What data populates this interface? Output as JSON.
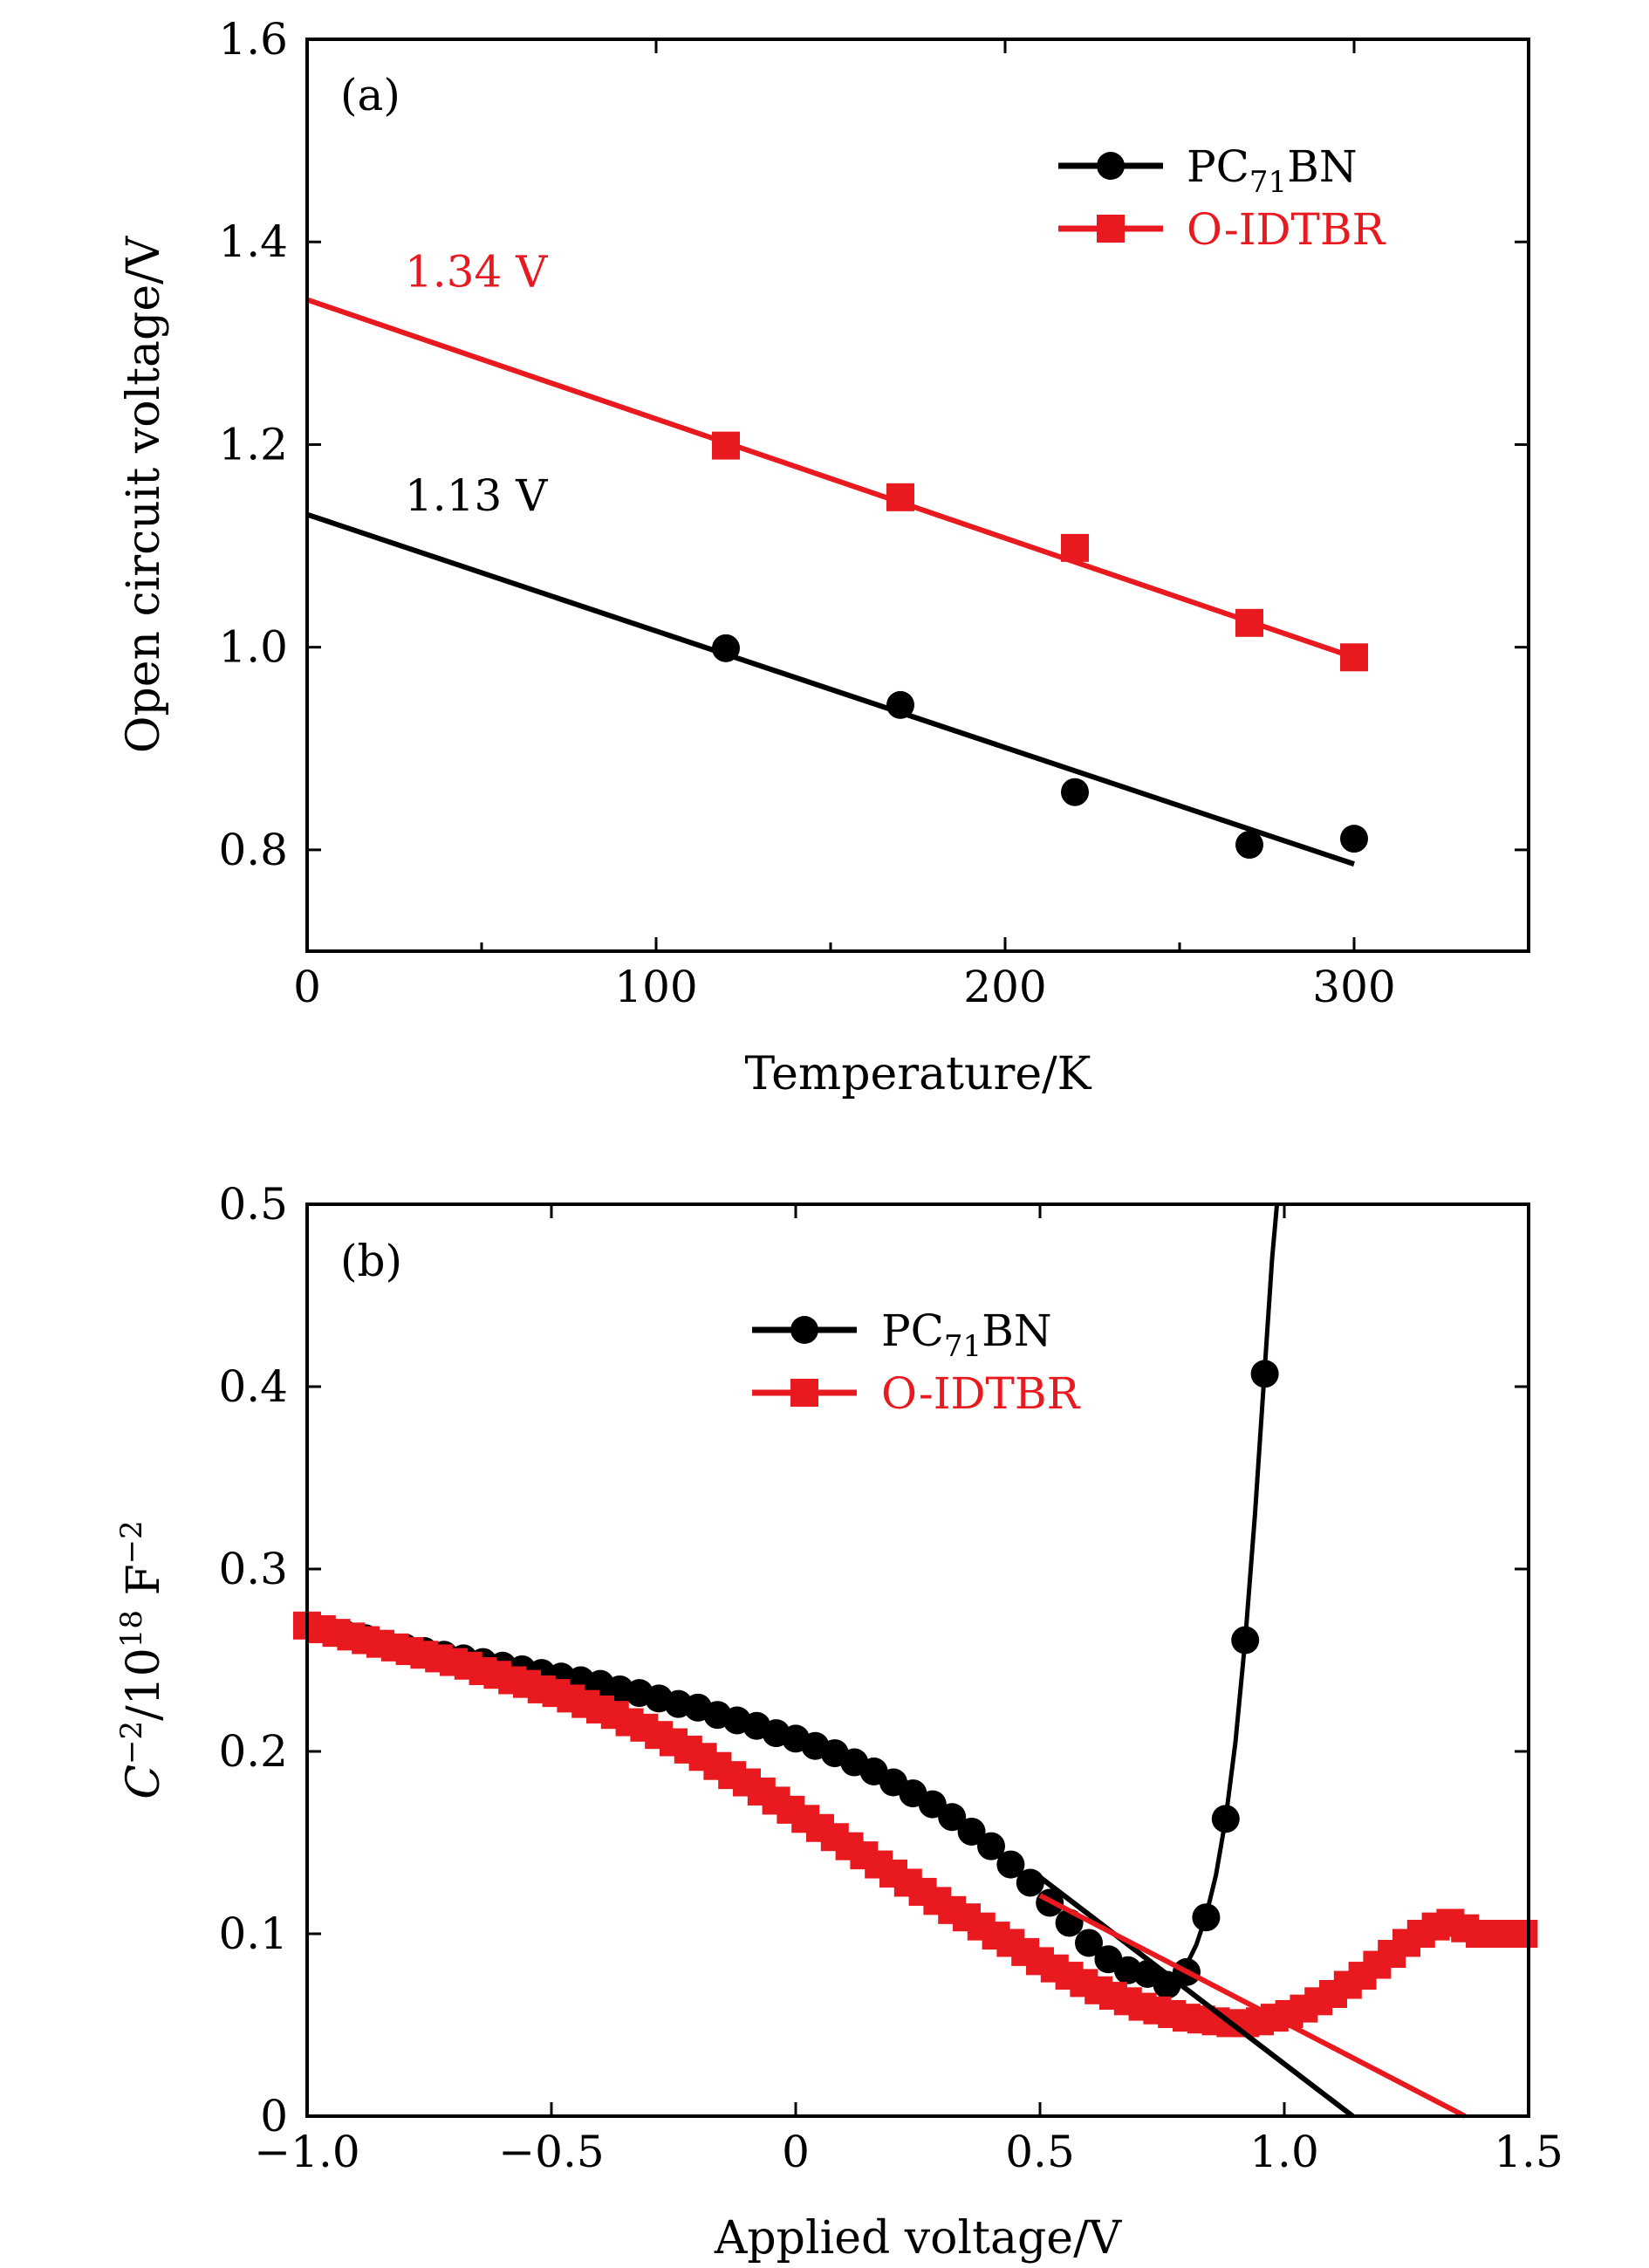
{
  "chart_data": [
    {
      "type": "scatter",
      "panel_label": "(a)",
      "xlabel": "Temperature/K",
      "ylabel": "Open circuit voltage/V",
      "xlim": [
        0,
        350
      ],
      "ylim": [
        0.7,
        1.6
      ],
      "xticks": [
        0,
        100,
        200,
        300
      ],
      "xtick_labels": [
        "0",
        "100",
        "200",
        "300"
      ],
      "xticks_minor": [
        50,
        150,
        250
      ],
      "yticks": [
        0.8,
        1.0,
        1.2,
        1.4,
        1.6
      ],
      "ytick_labels": [
        "0.8",
        "1.0",
        "1.2",
        "1.4",
        "1.6"
      ],
      "legend_position": "top-right",
      "series": [
        {
          "name": "PC71BN",
          "legend_base": "PC",
          "legend_sub": "71",
          "legend_tail": "BN",
          "color": "#000000",
          "marker": "circle",
          "x": [
            120,
            170,
            220,
            270,
            300
          ],
          "y": [
            0.999,
            0.943,
            0.857,
            0.805,
            0.811
          ],
          "fit_line": {
            "x": [
              0,
              300
            ],
            "y": [
              1.131,
              0.786
            ]
          },
          "annotation": "1.13 V",
          "annotation_at": [
            28,
            1.135
          ]
        },
        {
          "name": "O-IDTBR",
          "legend_label": "O-IDTBR",
          "color": "#e8191f",
          "marker": "square",
          "x": [
            120,
            170,
            220,
            270,
            300
          ],
          "y": [
            1.199,
            1.148,
            1.098,
            1.024,
            0.99
          ],
          "fit_line": {
            "x": [
              0,
              300
            ],
            "y": [
              1.343,
              0.99
            ]
          },
          "annotation": "1.34 V",
          "annotation_at": [
            28,
            1.356
          ]
        }
      ]
    },
    {
      "type": "scatter",
      "panel_label": "(b)",
      "xlabel": "Applied voltage/V",
      "ylabel_parts": [
        "C",
        "−2",
        "/10",
        "18",
        " F",
        "−2"
      ],
      "xlim": [
        -1.0,
        1.5
      ],
      "ylim": [
        0,
        0.5
      ],
      "xticks": [
        -1.0,
        -0.5,
        0,
        0.5,
        1.0,
        1.5
      ],
      "xtick_labels": [
        "−1.0",
        "−0.5",
        "0",
        "0.5",
        "1.0",
        "1.5"
      ],
      "yticks": [
        0,
        0.1,
        0.2,
        0.3,
        0.4,
        0.5
      ],
      "ytick_labels": [
        "0",
        "0.1",
        "0.2",
        "0.3",
        "0.4",
        "0.5"
      ],
      "legend_position": "top-center",
      "series": [
        {
          "name": "PC71BN",
          "legend_base": "PC",
          "legend_sub": "71",
          "legend_tail": "BN",
          "color": "#000000",
          "marker": "circle",
          "x": [
            -1.0,
            -0.96,
            -0.92,
            -0.88,
            -0.84,
            -0.8,
            -0.76,
            -0.72,
            -0.68,
            -0.64,
            -0.6,
            -0.56,
            -0.52,
            -0.48,
            -0.44,
            -0.4,
            -0.36,
            -0.32,
            -0.28,
            -0.24,
            -0.2,
            -0.16,
            -0.12,
            -0.08,
            -0.04,
            0.0,
            0.04,
            0.08,
            0.12,
            0.16,
            0.2,
            0.24,
            0.28,
            0.32,
            0.36,
            0.4,
            0.44,
            0.48,
            0.52,
            0.56,
            0.6,
            0.64,
            0.68,
            0.72,
            0.76,
            0.8,
            0.84,
            0.88,
            0.92,
            0.96
          ],
          "y": [
            0.269,
            0.267,
            0.264,
            0.262,
            0.259,
            0.257,
            0.255,
            0.253,
            0.251,
            0.249,
            0.247,
            0.245,
            0.243,
            0.241,
            0.239,
            0.237,
            0.234,
            0.232,
            0.229,
            0.226,
            0.224,
            0.22,
            0.217,
            0.214,
            0.21,
            0.207,
            0.203,
            0.199,
            0.194,
            0.189,
            0.183,
            0.177,
            0.171,
            0.164,
            0.156,
            0.148,
            0.138,
            0.128,
            0.117,
            0.106,
            0.095,
            0.086,
            0.08,
            0.078,
            0.072,
            0.079,
            0.109,
            0.163,
            0.261,
            0.407
          ],
          "curve": {
            "x": [
              0.76,
              0.78,
              0.8,
              0.82,
              0.84,
              0.86,
              0.88,
              0.9,
              0.92,
              0.94,
              0.955,
              0.965,
              0.975,
              0.985
            ],
            "y": [
              0.072,
              0.076,
              0.083,
              0.094,
              0.11,
              0.132,
              0.163,
              0.205,
              0.261,
              0.33,
              0.39,
              0.43,
              0.47,
              0.5
            ]
          },
          "fit_line": {
            "x": [
              0.5,
              1.14
            ],
            "y": [
              0.131,
              0.0
            ]
          }
        },
        {
          "name": "O-IDTBR",
          "legend_label": "O-IDTBR",
          "color": "#e8191f",
          "marker": "square",
          "x": [
            -1.0,
            -0.97,
            -0.94,
            -0.91,
            -0.88,
            -0.85,
            -0.82,
            -0.79,
            -0.76,
            -0.73,
            -0.7,
            -0.67,
            -0.64,
            -0.61,
            -0.58,
            -0.55,
            -0.52,
            -0.49,
            -0.46,
            -0.43,
            -0.4,
            -0.37,
            -0.34,
            -0.31,
            -0.28,
            -0.25,
            -0.22,
            -0.19,
            -0.16,
            -0.13,
            -0.1,
            -0.07,
            -0.04,
            -0.01,
            0.02,
            0.05,
            0.08,
            0.11,
            0.14,
            0.17,
            0.2,
            0.23,
            0.26,
            0.29,
            0.32,
            0.35,
            0.38,
            0.41,
            0.44,
            0.47,
            0.5,
            0.53,
            0.56,
            0.59,
            0.62,
            0.65,
            0.68,
            0.71,
            0.74,
            0.77,
            0.8,
            0.83,
            0.86,
            0.89,
            0.92,
            0.95,
            0.98,
            1.01,
            1.04,
            1.07,
            1.1,
            1.13,
            1.16,
            1.19,
            1.22,
            1.25,
            1.28,
            1.31,
            1.34,
            1.37,
            1.4,
            1.43,
            1.46,
            1.49
          ],
          "y": [
            0.269,
            0.267,
            0.265,
            0.263,
            0.261,
            0.259,
            0.257,
            0.255,
            0.253,
            0.251,
            0.249,
            0.247,
            0.244,
            0.242,
            0.239,
            0.237,
            0.234,
            0.232,
            0.229,
            0.226,
            0.223,
            0.22,
            0.216,
            0.213,
            0.209,
            0.205,
            0.201,
            0.197,
            0.192,
            0.187,
            0.183,
            0.178,
            0.173,
            0.168,
            0.163,
            0.158,
            0.153,
            0.148,
            0.143,
            0.138,
            0.133,
            0.128,
            0.123,
            0.118,
            0.113,
            0.109,
            0.104,
            0.099,
            0.095,
            0.09,
            0.085,
            0.081,
            0.077,
            0.073,
            0.069,
            0.066,
            0.063,
            0.06,
            0.058,
            0.056,
            0.054,
            0.053,
            0.052,
            0.051,
            0.051,
            0.052,
            0.054,
            0.056,
            0.059,
            0.063,
            0.067,
            0.072,
            0.077,
            0.083,
            0.089,
            0.095,
            0.1,
            0.104,
            0.106,
            0.103,
            0.1,
            0.1,
            0.1,
            0.1
          ],
          "fit_line": {
            "x": [
              0.5,
              1.37
            ],
            "y": [
              0.121,
              0.0
            ]
          }
        }
      ]
    }
  ]
}
